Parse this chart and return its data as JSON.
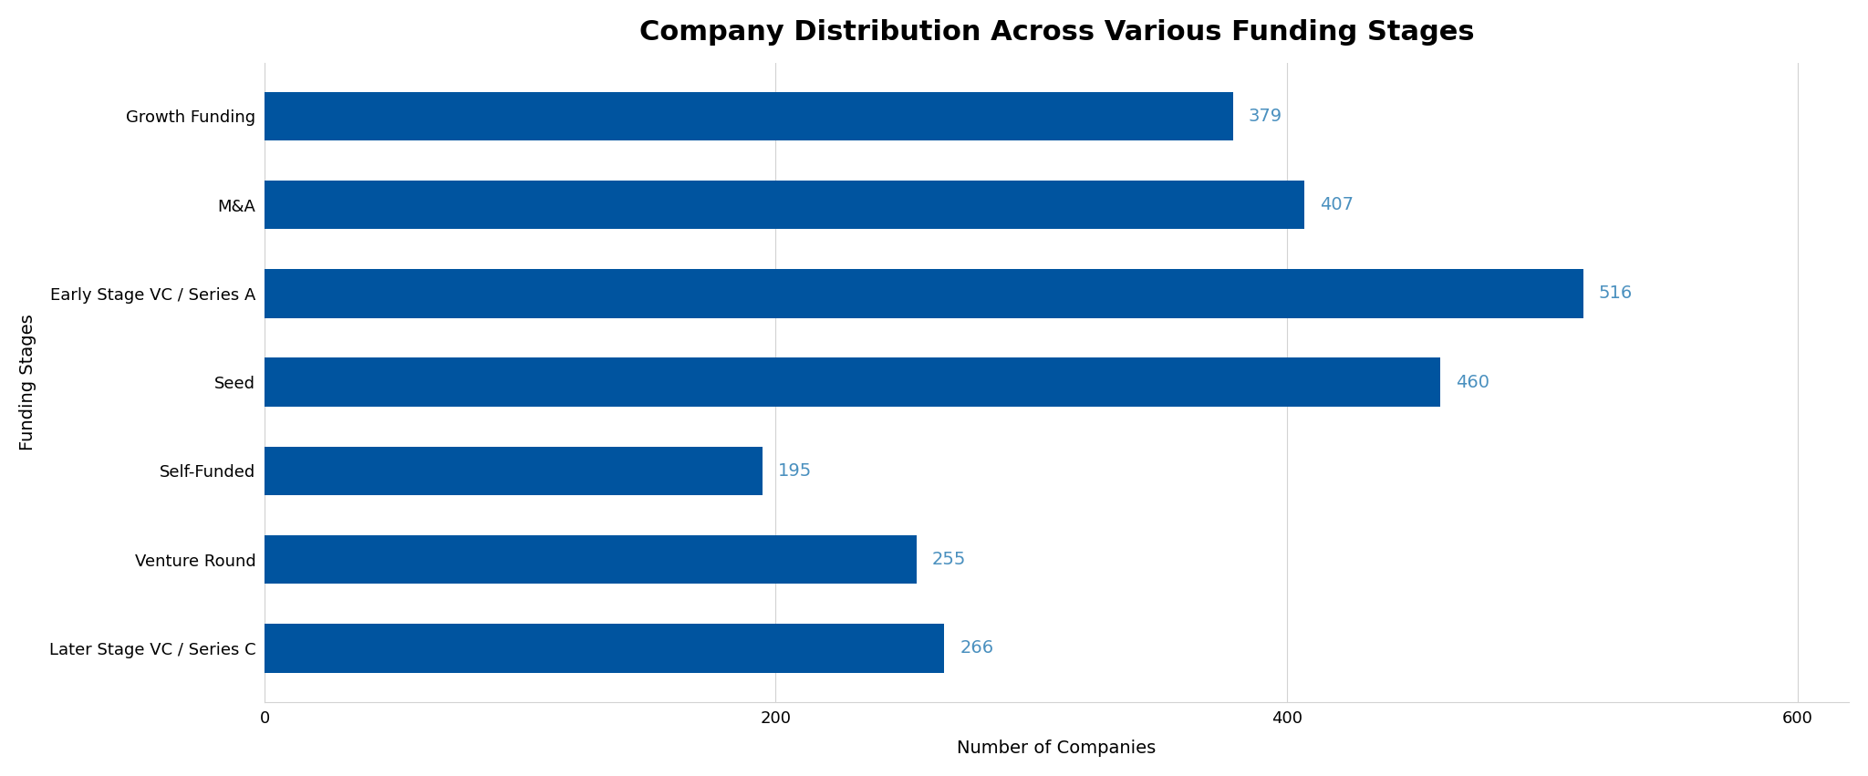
{
  "title": "Company Distribution Across Various Funding Stages",
  "xlabel": "Number of Companies",
  "ylabel": "Funding Stages",
  "categories": [
    "Later Stage VC / Series C",
    "Venture Round",
    "Self-Funded",
    "Seed",
    "Early Stage VC / Series A",
    "M&A",
    "Growth Funding"
  ],
  "values": [
    266,
    255,
    195,
    460,
    516,
    407,
    379
  ],
  "bar_color": "#00549F",
  "label_color": "#4A90BF",
  "background_color": "#ffffff",
  "xlim": [
    0,
    620
  ],
  "xticks": [
    0,
    200,
    400,
    600
  ],
  "title_fontsize": 22,
  "label_fontsize": 14,
  "tick_fontsize": 13,
  "value_fontsize": 14,
  "bar_height": 0.55,
  "figsize": [
    20.48,
    8.51
  ],
  "dpi": 100
}
